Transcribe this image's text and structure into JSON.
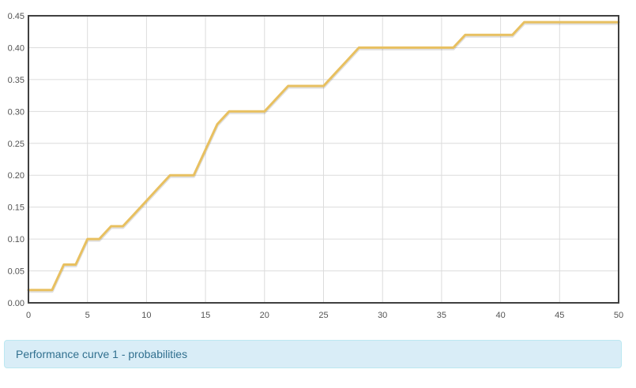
{
  "chart_data": {
    "type": "line",
    "title": "",
    "xlabel": "",
    "ylabel": "",
    "xlim": [
      0,
      50
    ],
    "ylim": [
      0,
      0.45
    ],
    "x_ticks": [
      "0",
      "5",
      "10",
      "15",
      "20",
      "25",
      "30",
      "35",
      "40",
      "45",
      "50"
    ],
    "y_ticks": [
      "0.00",
      "0.05",
      "0.10",
      "0.15",
      "0.20",
      "0.25",
      "0.30",
      "0.35",
      "0.40",
      "0.45"
    ],
    "grid": true,
    "legend": "none",
    "series": [
      {
        "color": "#e8c060",
        "x": [
          0,
          2,
          3,
          4,
          5,
          6,
          7,
          8,
          9,
          10,
          11,
          12,
          13,
          14,
          15,
          16,
          17,
          18,
          19,
          20,
          21,
          22,
          23,
          24,
          25,
          26,
          27,
          28,
          29,
          30,
          31,
          32,
          33,
          34,
          35,
          36,
          37,
          38,
          39,
          40,
          41,
          42,
          43,
          44,
          45,
          46,
          47,
          48,
          49,
          50
        ],
        "values": [
          0.02,
          0.02,
          0.06,
          0.06,
          0.1,
          0.1,
          0.12,
          0.12,
          0.14,
          0.16,
          0.18,
          0.2,
          0.2,
          0.2,
          0.24,
          0.28,
          0.3,
          0.3,
          0.3,
          0.3,
          0.32,
          0.34,
          0.34,
          0.34,
          0.34,
          0.36,
          0.38,
          0.4,
          0.4,
          0.4,
          0.4,
          0.4,
          0.4,
          0.4,
          0.4,
          0.4,
          0.42,
          0.42,
          0.42,
          0.42,
          0.42,
          0.44,
          0.44,
          0.44,
          0.44,
          0.44,
          0.44,
          0.44,
          0.44,
          0.44
        ]
      }
    ]
  },
  "caption": {
    "text": "Performance curve 1 - probabilities",
    "background": "#d9edf7",
    "border": "#bce8f1",
    "color": "#31708f"
  }
}
